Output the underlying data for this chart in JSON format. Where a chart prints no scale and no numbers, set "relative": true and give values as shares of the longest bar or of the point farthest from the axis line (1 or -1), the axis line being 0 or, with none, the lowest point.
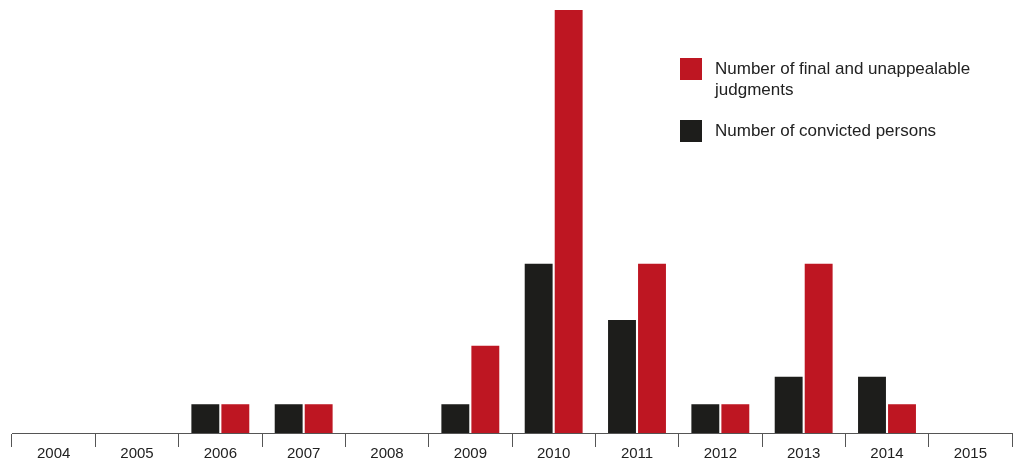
{
  "chart_data": {
    "type": "bar",
    "relative": true,
    "categories": [
      "2004",
      "2005",
      "2006",
      "2007",
      "2008",
      "2009",
      "2010",
      "2011",
      "2012",
      "2013",
      "2014",
      "2015"
    ],
    "series": [
      {
        "name": "Number of convicted persons",
        "color": "#1d1d1b",
        "values": [
          0,
          0,
          0.068,
          0.068,
          0,
          0.068,
          0.4,
          0.267,
          0.068,
          0.133,
          0.133,
          0
        ]
      },
      {
        "name": "Number of final and unappealable judgments",
        "color": "#be1622",
        "values": [
          0,
          0,
          0.068,
          0.068,
          0,
          0.206,
          1,
          0.4,
          0.068,
          0.4,
          0.068,
          0
        ]
      }
    ],
    "legend": "top right",
    "grid": false
  }
}
